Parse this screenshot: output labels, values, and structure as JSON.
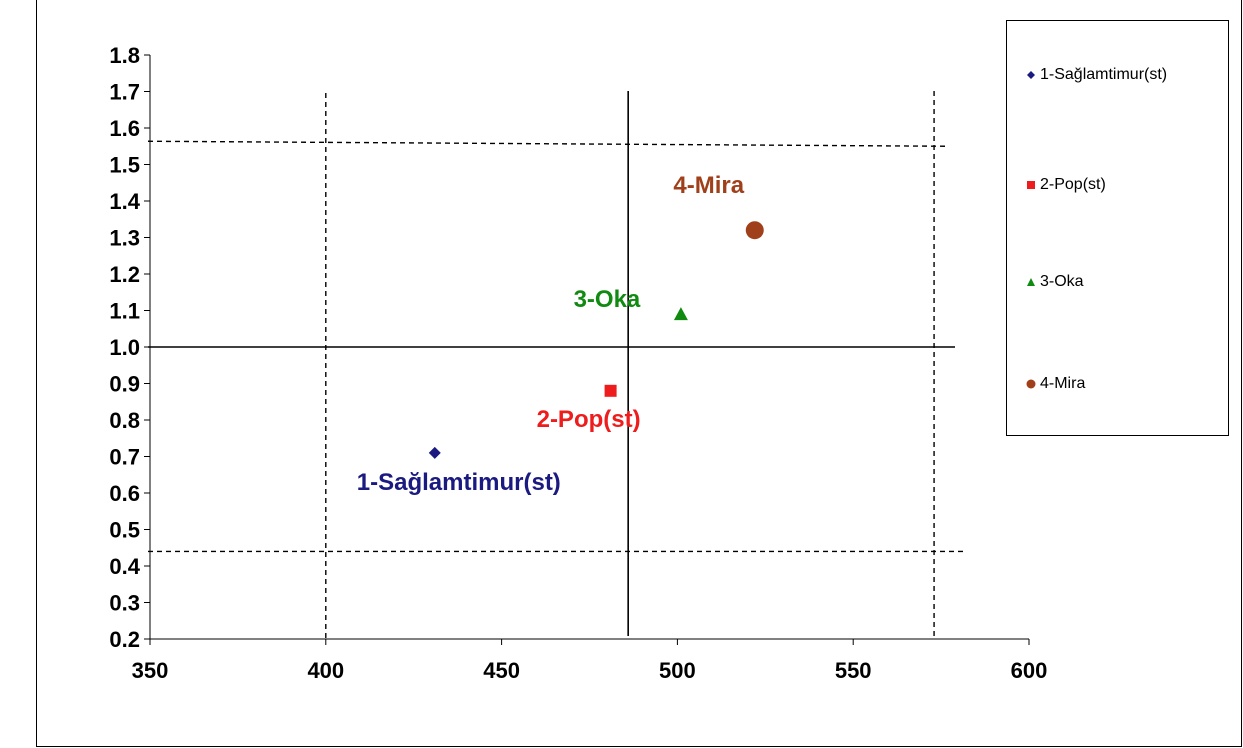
{
  "title": "",
  "chart_data": {
    "type": "scatter",
    "title": "",
    "xlabel": "",
    "ylabel": "",
    "xlim": [
      350,
      600
    ],
    "ylim": [
      0.2,
      1.8
    ],
    "xticks": [
      350,
      400,
      450,
      500,
      550,
      600
    ],
    "yticks": [
      "0.2",
      "0.3",
      "0.4",
      "0.5",
      "0.6",
      "0.7",
      "0.8",
      "0.9",
      "1.0",
      "1.1",
      "1.2",
      "1.3",
      "1.4",
      "1.5",
      "1.6",
      "1.7",
      "1.8"
    ],
    "grid": false,
    "legend_position": "right",
    "series": [
      {
        "name": "1-Sağlamtimur(st)",
        "label": "1-Sağlamtimur(st)",
        "marker": "diamond",
        "color": "#1a1a80",
        "x": [
          431
        ],
        "y": [
          0.71
        ]
      },
      {
        "name": "2-Pop(st)",
        "label": "2-Pop(st)",
        "marker": "square",
        "color": "#ee1c1c",
        "x": [
          481
        ],
        "y": [
          0.88
        ]
      },
      {
        "name": "3-Oka",
        "label": "3-Oka",
        "marker": "triangle",
        "color": "#118a11",
        "x": [
          501
        ],
        "y": [
          1.09
        ]
      },
      {
        "name": "4-Mira",
        "label": "4-Mira",
        "marker": "circle",
        "color": "#a0401a",
        "x": [
          522
        ],
        "y": [
          1.32
        ]
      }
    ],
    "reference_lines": [
      {
        "orientation": "vertical",
        "x": 486,
        "style": "solid"
      },
      {
        "orientation": "horizontal",
        "y": 1.0,
        "style": "solid"
      },
      {
        "orientation": "vertical",
        "x": 400,
        "style": "dashed"
      },
      {
        "orientation": "vertical",
        "x": 573,
        "style": "dashed"
      },
      {
        "orientation": "horizontal",
        "y": 1.55,
        "style": "dashed"
      },
      {
        "orientation": "horizontal",
        "y": 0.44,
        "style": "dashed"
      }
    ]
  }
}
